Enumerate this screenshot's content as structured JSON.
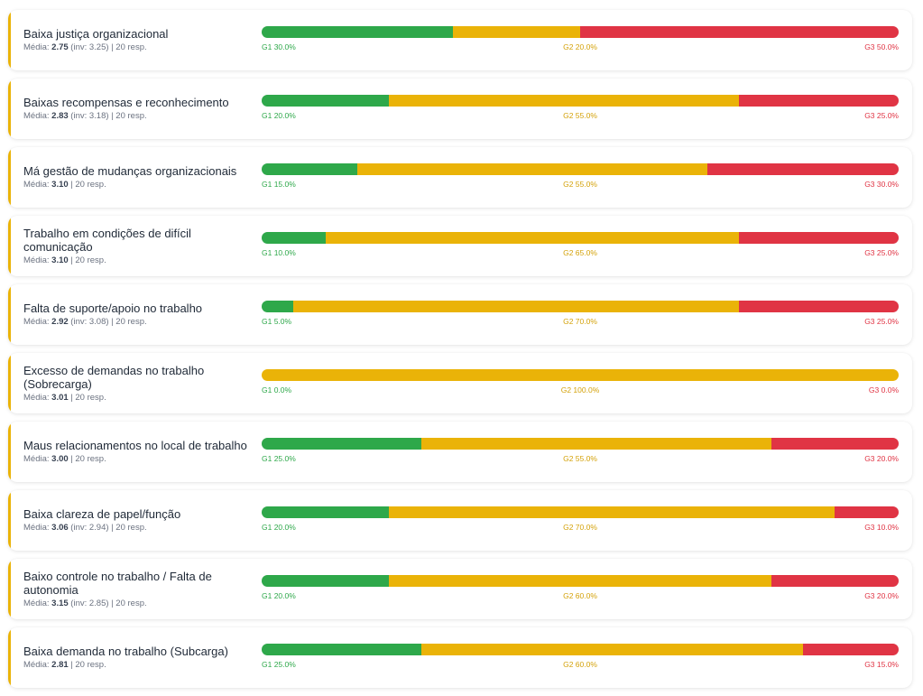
{
  "chart_data": {
    "type": "bar",
    "orientation": "horizontal",
    "stacked": true,
    "series": [
      {
        "name": "G1",
        "color": "#2ea84a"
      },
      {
        "name": "G2",
        "color": "#eab308"
      },
      {
        "name": "G3",
        "color": "#e03444"
      }
    ],
    "items": [
      {
        "title": "Baixa justiça organizacional",
        "mean_label": "Média:",
        "mean": "2.75",
        "extra": " (inv: 3.25)",
        "resp": " | 20 resp.",
        "g1": 30.0,
        "g2": 20.0,
        "g3": 50.0,
        "g1_label": "G1 30.0%",
        "g2_label": "G2 20.0%",
        "g3_label": "G3 50.0%"
      },
      {
        "title": "Baixas recompensas e reconhecimento",
        "mean_label": "Média:",
        "mean": "2.83",
        "extra": " (inv: 3.18)",
        "resp": " | 20 resp.",
        "g1": 20.0,
        "g2": 55.0,
        "g3": 25.0,
        "g1_label": "G1 20.0%",
        "g2_label": "G2 55.0%",
        "g3_label": "G3 25.0%"
      },
      {
        "title": "Má gestão de mudanças organizacionais",
        "mean_label": "Média:",
        "mean": "3.10",
        "extra": "",
        "resp": " | 20 resp.",
        "g1": 15.0,
        "g2": 55.0,
        "g3": 30.0,
        "g1_label": "G1 15.0%",
        "g2_label": "G2 55.0%",
        "g3_label": "G3 30.0%"
      },
      {
        "title": "Trabalho em condições de difícil comunicação",
        "mean_label": "Média:",
        "mean": "3.10",
        "extra": "",
        "resp": " | 20 resp.",
        "g1": 10.0,
        "g2": 65.0,
        "g3": 25.0,
        "g1_label": "G1 10.0%",
        "g2_label": "G2 65.0%",
        "g3_label": "G3 25.0%"
      },
      {
        "title": "Falta de suporte/apoio no trabalho",
        "mean_label": "Média:",
        "mean": "2.92",
        "extra": " (inv: 3.08)",
        "resp": " | 20 resp.",
        "g1": 5.0,
        "g2": 70.0,
        "g3": 25.0,
        "g1_label": "G1 5.0%",
        "g2_label": "G2 70.0%",
        "g3_label": "G3 25.0%"
      },
      {
        "title": "Excesso de demandas no trabalho (Sobrecarga)",
        "mean_label": "Média:",
        "mean": "3.01",
        "extra": "",
        "resp": " | 20 resp.",
        "g1": 0.0,
        "g2": 100.0,
        "g3": 0.0,
        "g1_label": "G1 0.0%",
        "g2_label": "G2 100.0%",
        "g3_label": "G3 0.0%"
      },
      {
        "title": "Maus relacionamentos no local de trabalho",
        "mean_label": "Média:",
        "mean": "3.00",
        "extra": "",
        "resp": " | 20 resp.",
        "g1": 25.0,
        "g2": 55.0,
        "g3": 20.0,
        "g1_label": "G1 25.0%",
        "g2_label": "G2 55.0%",
        "g3_label": "G3 20.0%"
      },
      {
        "title": "Baixa clareza de papel/função",
        "mean_label": "Média:",
        "mean": "3.06",
        "extra": " (inv: 2.94)",
        "resp": " | 20 resp.",
        "g1": 20.0,
        "g2": 70.0,
        "g3": 10.0,
        "g1_label": "G1 20.0%",
        "g2_label": "G2 70.0%",
        "g3_label": "G3 10.0%"
      },
      {
        "title": "Baixo controle no trabalho / Falta de autonomia",
        "mean_label": "Média:",
        "mean": "3.15",
        "extra": " (inv: 2.85)",
        "resp": " | 20 resp.",
        "g1": 20.0,
        "g2": 60.0,
        "g3": 20.0,
        "g1_label": "G1 20.0%",
        "g2_label": "G2 60.0%",
        "g3_label": "G3 20.0%"
      },
      {
        "title": "Baixa demanda no trabalho (Subcarga)",
        "mean_label": "Média:",
        "mean": "2.81",
        "extra": "",
        "resp": " | 20 resp.",
        "g1": 25.0,
        "g2": 60.0,
        "g3": 15.0,
        "g1_label": "G1 25.0%",
        "g2_label": "G2 60.0%",
        "g3_label": "G3 15.0%"
      }
    ]
  }
}
